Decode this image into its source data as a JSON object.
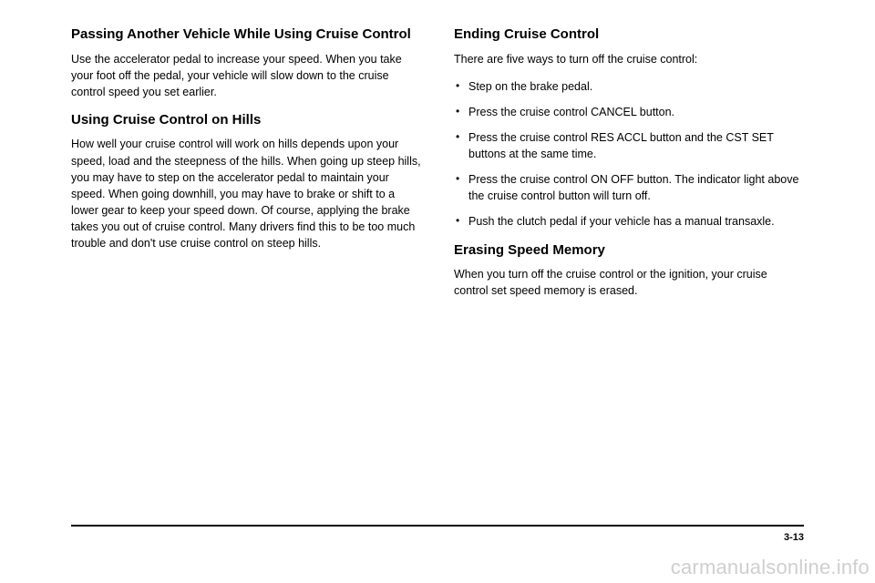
{
  "left": {
    "h1": "Passing Another Vehicle While Using Cruise Control",
    "p1": "Use the accelerator pedal to increase your speed. When you take your foot off the pedal, your vehicle will slow down to the cruise control speed you set earlier.",
    "h2": "Using Cruise Control on Hills",
    "p2": "How well your cruise control will work on hills depends upon your speed, load and the steepness of the hills. When going up steep hills, you may have to step on the accelerator pedal to maintain your speed. When going downhill, you may have to brake or shift to a lower gear to keep your speed down. Of course, applying the brake takes you out of cruise control. Many drivers find this to be too much trouble and don't use cruise control on steep hills."
  },
  "right": {
    "h1": "Ending Cruise Control",
    "p1": "There are five ways to turn off the cruise control:",
    "items": [
      "Step on the brake pedal.",
      "Press the cruise control CANCEL button.",
      "Press the cruise control RES ACCL button and the CST SET buttons at the same time.",
      "Press the cruise control ON OFF button. The indicator light above the cruise control button will turn off.",
      "Push the clutch pedal if your vehicle has a manual transaxle."
    ],
    "h2": "Erasing Speed Memory",
    "p2": "When you turn off the cruise control or the ignition, your cruise control set speed memory is erased."
  },
  "pagenum": "3-13",
  "watermark": "carmanualsonline.info"
}
